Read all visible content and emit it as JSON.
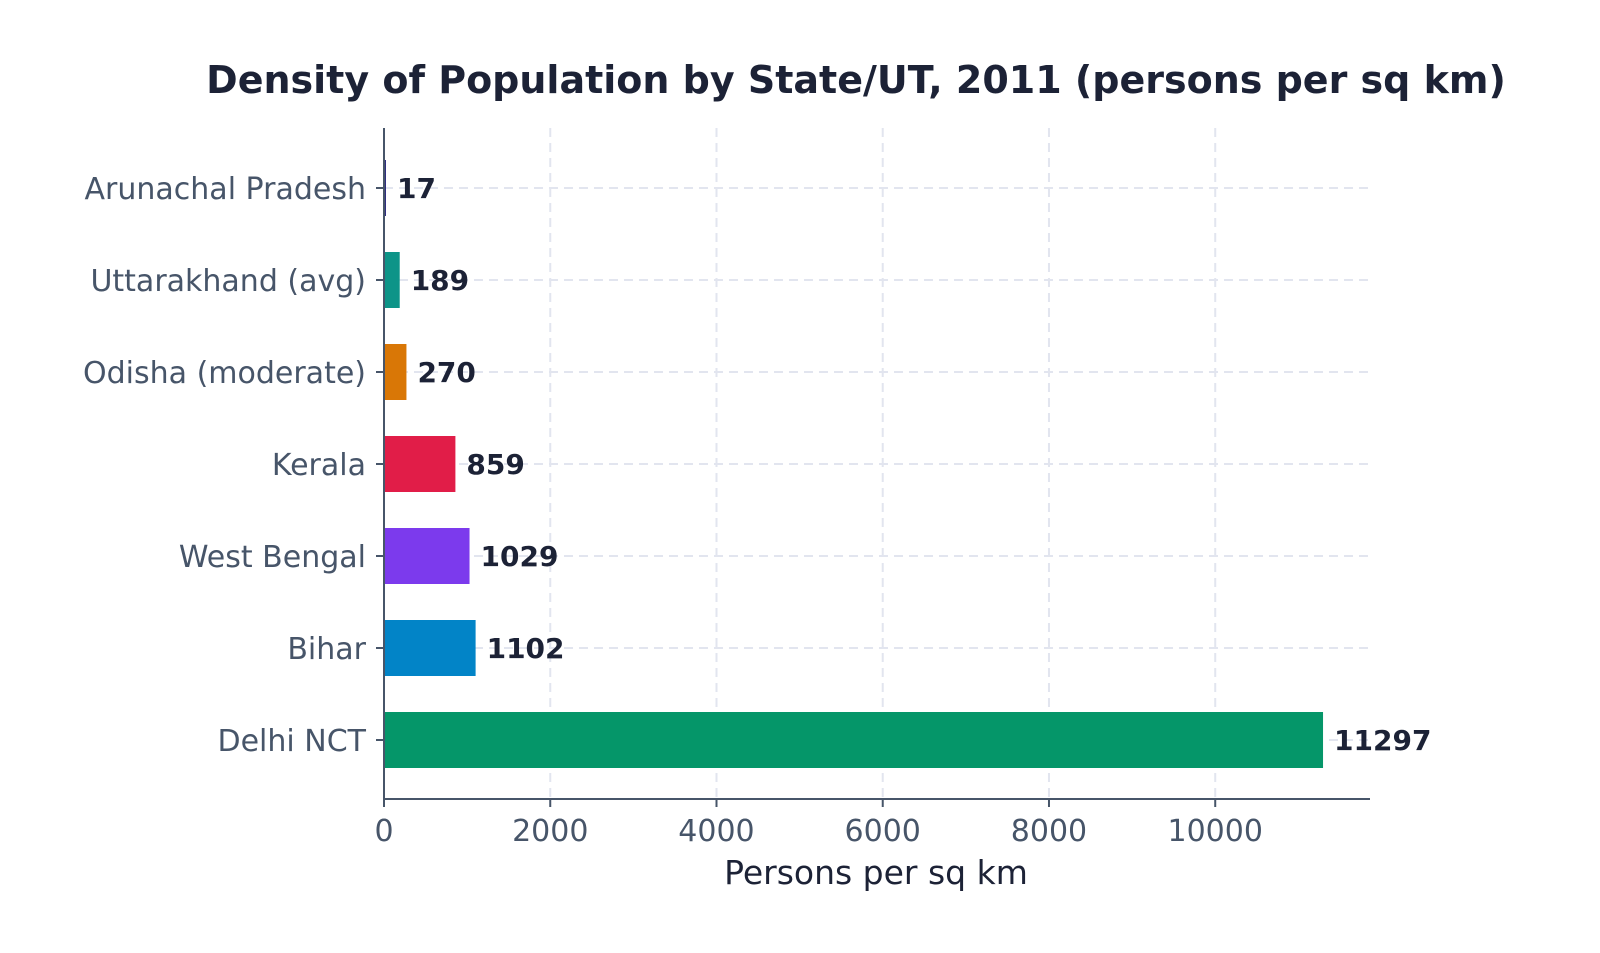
{
  "chart_data": {
    "type": "bar",
    "orientation": "horizontal",
    "title": "Density of Population by State/UT, 2011 (persons per sq km)",
    "xlabel": "Persons per sq km",
    "ylabel": "",
    "categories": [
      "Arunachal Pradesh",
      "Uttarakhand (avg)",
      "Odisha (moderate)",
      "Kerala",
      "West Bengal",
      "Bihar",
      "Delhi NCT"
    ],
    "values": [
      17,
      189,
      270,
      859,
      1029,
      1102,
      11297
    ],
    "value_labels": [
      "17",
      "189",
      "270",
      "859",
      "1029",
      "1102",
      "11297"
    ],
    "colors": [
      "#312e81",
      "#0d9488",
      "#d97706",
      "#e11d48",
      "#7c3aed",
      "#0284c7",
      "#059669"
    ],
    "xlim": [
      0,
      11862
    ],
    "xticks": [
      0,
      2000,
      4000,
      6000,
      8000,
      10000
    ],
    "xtick_labels": [
      "0",
      "2000",
      "4000",
      "6000",
      "8000",
      "10000"
    ],
    "grid": true,
    "legend": "none"
  }
}
